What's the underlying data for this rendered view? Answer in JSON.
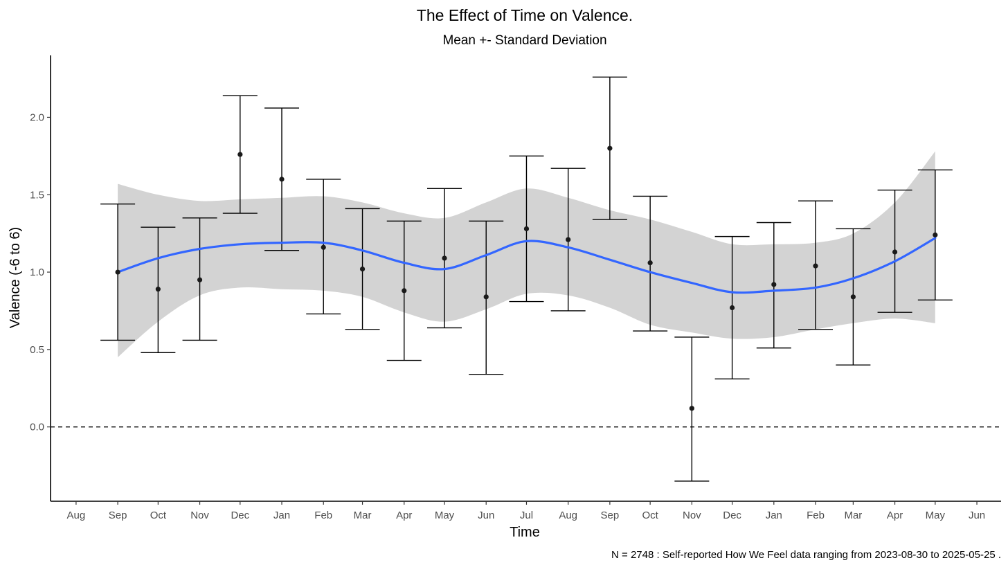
{
  "chart_data": {
    "type": "scatter",
    "title": "The Effect of Time on Valence.",
    "subtitle": "Mean +- Standard Deviation",
    "xlabel": "Time",
    "ylabel": "Valence (-6 to 6)",
    "caption": "N = 2748 : Self-reported How We Feel data ranging from 2023-08-30 to 2025-05-25 .",
    "x_ticks": [
      "Aug",
      "Sep",
      "Oct",
      "Nov",
      "Dec",
      "Jan",
      "Feb",
      "Mar",
      "Apr",
      "May",
      "Jun",
      "Jul",
      "Aug",
      "Sep",
      "Oct",
      "Nov",
      "Dec",
      "Jan",
      "Feb",
      "Mar",
      "Apr",
      "May",
      "Jun"
    ],
    "x_tick_dates": [
      "2023-08-01",
      "2023-09-01",
      "2023-10-01",
      "2023-11-01",
      "2023-12-01",
      "2024-01-01",
      "2024-02-01",
      "2024-03-01",
      "2024-04-01",
      "2024-05-01",
      "2024-06-01",
      "2024-07-01",
      "2024-08-01",
      "2024-09-01",
      "2024-10-01",
      "2024-11-01",
      "2024-12-01",
      "2025-01-01",
      "2025-02-01",
      "2025-03-01",
      "2025-04-01",
      "2025-05-01",
      "2025-06-01"
    ],
    "y_ticks": [
      0.0,
      0.5,
      1.0,
      1.5,
      2.0
    ],
    "y_tick_labels": [
      "0.0",
      "0.5",
      "1.0",
      "1.5",
      "2.0"
    ],
    "ylim": [
      -0.48,
      2.4
    ],
    "xlim": [
      "2023-07-13",
      "2025-06-19"
    ],
    "reference_line": {
      "y": 0,
      "style": "dashed"
    },
    "grid": false,
    "points": [
      {
        "x": "2023-09-01",
        "mean": 1.0,
        "lower": 0.56,
        "upper": 1.44
      },
      {
        "x": "2023-10-01",
        "mean": 0.89,
        "lower": 0.48,
        "upper": 1.29
      },
      {
        "x": "2023-11-01",
        "mean": 0.95,
        "lower": 0.56,
        "upper": 1.35
      },
      {
        "x": "2023-12-01",
        "mean": 1.76,
        "lower": 1.38,
        "upper": 2.14
      },
      {
        "x": "2024-01-01",
        "mean": 1.6,
        "lower": 1.14,
        "upper": 2.06
      },
      {
        "x": "2024-02-01",
        "mean": 1.16,
        "lower": 0.73,
        "upper": 1.6
      },
      {
        "x": "2024-03-01",
        "mean": 1.02,
        "lower": 0.63,
        "upper": 1.41
      },
      {
        "x": "2024-04-01",
        "mean": 0.88,
        "lower": 0.43,
        "upper": 1.33
      },
      {
        "x": "2024-05-01",
        "mean": 1.09,
        "lower": 0.64,
        "upper": 1.54
      },
      {
        "x": "2024-06-01",
        "mean": 0.84,
        "lower": 0.34,
        "upper": 1.33
      },
      {
        "x": "2024-07-01",
        "mean": 1.28,
        "lower": 0.81,
        "upper": 1.75
      },
      {
        "x": "2024-08-01",
        "mean": 1.21,
        "lower": 0.75,
        "upper": 1.67
      },
      {
        "x": "2024-09-01",
        "mean": 1.8,
        "lower": 1.34,
        "upper": 2.26
      },
      {
        "x": "2024-10-01",
        "mean": 1.06,
        "lower": 0.62,
        "upper": 1.49
      },
      {
        "x": "2024-11-01",
        "mean": 0.12,
        "lower": -0.35,
        "upper": 0.58
      },
      {
        "x": "2024-12-01",
        "mean": 0.77,
        "lower": 0.31,
        "upper": 1.23
      },
      {
        "x": "2025-01-01",
        "mean": 0.92,
        "lower": 0.51,
        "upper": 1.32
      },
      {
        "x": "2025-02-01",
        "mean": 1.04,
        "lower": 0.63,
        "upper": 1.46
      },
      {
        "x": "2025-03-01",
        "mean": 0.84,
        "lower": 0.4,
        "upper": 1.28
      },
      {
        "x": "2025-04-01",
        "mean": 1.13,
        "lower": 0.74,
        "upper": 1.53
      },
      {
        "x": "2025-05-01",
        "mean": 1.24,
        "lower": 0.82,
        "upper": 1.66
      }
    ],
    "smooth": {
      "color": "#3366FF",
      "band_color": "#d3d3d3",
      "x": [
        "2023-09-01",
        "2023-10-01",
        "2023-11-01",
        "2023-12-01",
        "2024-01-01",
        "2024-02-01",
        "2024-03-01",
        "2024-04-01",
        "2024-05-01",
        "2024-06-01",
        "2024-07-01",
        "2024-08-01",
        "2024-09-01",
        "2024-10-01",
        "2024-11-01",
        "2024-12-01",
        "2025-01-01",
        "2025-02-01",
        "2025-03-01",
        "2025-04-01",
        "2025-05-01"
      ],
      "y": [
        1.0,
        1.09,
        1.15,
        1.18,
        1.19,
        1.19,
        1.14,
        1.06,
        1.02,
        1.11,
        1.2,
        1.16,
        1.08,
        1.0,
        0.93,
        0.87,
        0.88,
        0.9,
        0.96,
        1.07,
        1.22
      ],
      "lower": [
        0.45,
        0.68,
        0.85,
        0.9,
        0.89,
        0.88,
        0.84,
        0.74,
        0.68,
        0.76,
        0.86,
        0.85,
        0.77,
        0.66,
        0.61,
        0.57,
        0.58,
        0.63,
        0.67,
        0.7,
        0.67
      ],
      "upper": [
        1.57,
        1.5,
        1.46,
        1.47,
        1.48,
        1.49,
        1.45,
        1.38,
        1.35,
        1.45,
        1.54,
        1.48,
        1.4,
        1.34,
        1.26,
        1.18,
        1.18,
        1.19,
        1.25,
        1.45,
        1.78
      ]
    },
    "colors": {
      "point": "#1a1a1a",
      "errorbar": "#000000",
      "axis": "#000000",
      "tick_label": "#4d4d4d"
    }
  }
}
